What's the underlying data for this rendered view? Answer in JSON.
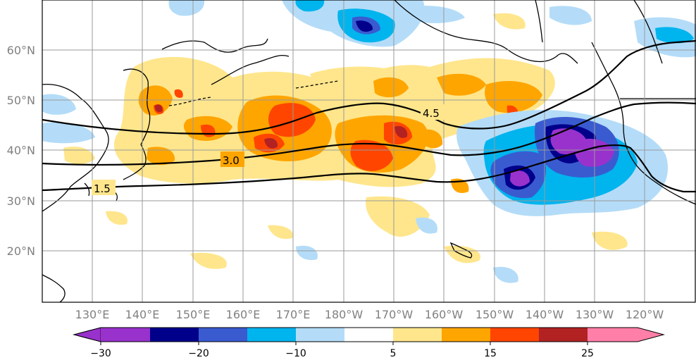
{
  "map": {
    "latitude_labels": [
      "60°N",
      "50°N",
      "40°N",
      "30°N",
      "20°N"
    ],
    "longitude_labels": [
      "130°E",
      "140°E",
      "150°E",
      "160°E",
      "170°E",
      "180°W",
      "170°W",
      "160°W",
      "150°W",
      "140°W",
      "130°W",
      "120°W"
    ],
    "contour_labels": [
      "4.5",
      "3.0",
      "1.5"
    ]
  },
  "colorbar": {
    "tick_labels": [
      "−30",
      "−20",
      "−10",
      "5",
      "15",
      "25"
    ],
    "colors": [
      "#9932cc",
      "#00008b",
      "#3a5bd0",
      "#00b4ee",
      "#b4dcf8",
      "#ffffff",
      "#ffe68c",
      "#ffa500",
      "#ff4500",
      "#b22222",
      "#ff7fa8"
    ]
  },
  "chart_data": {
    "type": "heatmap",
    "title": "",
    "xlabel": "",
    "ylabel": "",
    "lon_ticks": [
      "130°E",
      "140°E",
      "150°E",
      "160°E",
      "170°E",
      "180°W",
      "170°W",
      "160°W",
      "150°W",
      "140°W",
      "130°W",
      "120°W"
    ],
    "lat_ticks": [
      "60°N",
      "50°N",
      "40°N",
      "30°N",
      "20°N"
    ],
    "colorbar_range": [
      -30,
      30
    ],
    "colorbar_ticks": [
      -30,
      -20,
      -10,
      5,
      15,
      25
    ],
    "contours": [
      {
        "label": "4.5"
      },
      {
        "label": "3.0"
      },
      {
        "label": "1.5"
      }
    ]
  }
}
